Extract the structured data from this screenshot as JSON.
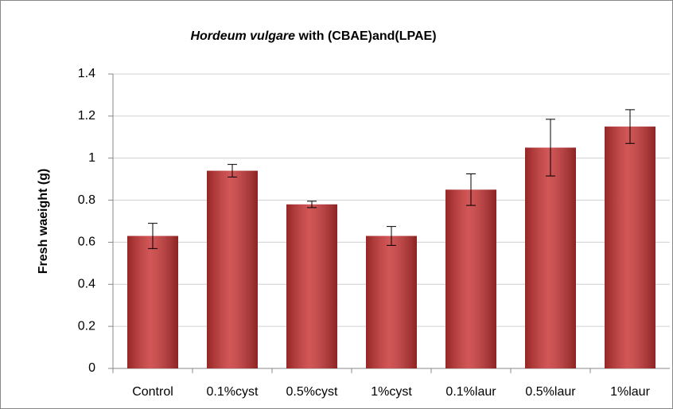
{
  "chart_data": {
    "type": "bar",
    "title": {
      "species": "Hordeum vulgare",
      "rest": "with (CBAE)and(LPAE)"
    },
    "y_label": "Fresh waeight (g)",
    "categories": [
      "Control",
      "0.1%cyst",
      "0.5%cyst",
      "1%cyst",
      "0.1%laur",
      "0.5%laur",
      "1%laur"
    ],
    "values": [
      0.63,
      0.94,
      0.78,
      0.63,
      0.85,
      1.05,
      1.15
    ],
    "errors": [
      0.06,
      0.03,
      0.015,
      0.045,
      0.075,
      0.135,
      0.08
    ],
    "color": "#c83232",
    "ylim": [
      0,
      1.4
    ],
    "yticks": [
      0,
      0.2,
      0.4,
      0.6,
      0.8,
      1,
      1.2,
      1.4
    ],
    "grid": true
  }
}
